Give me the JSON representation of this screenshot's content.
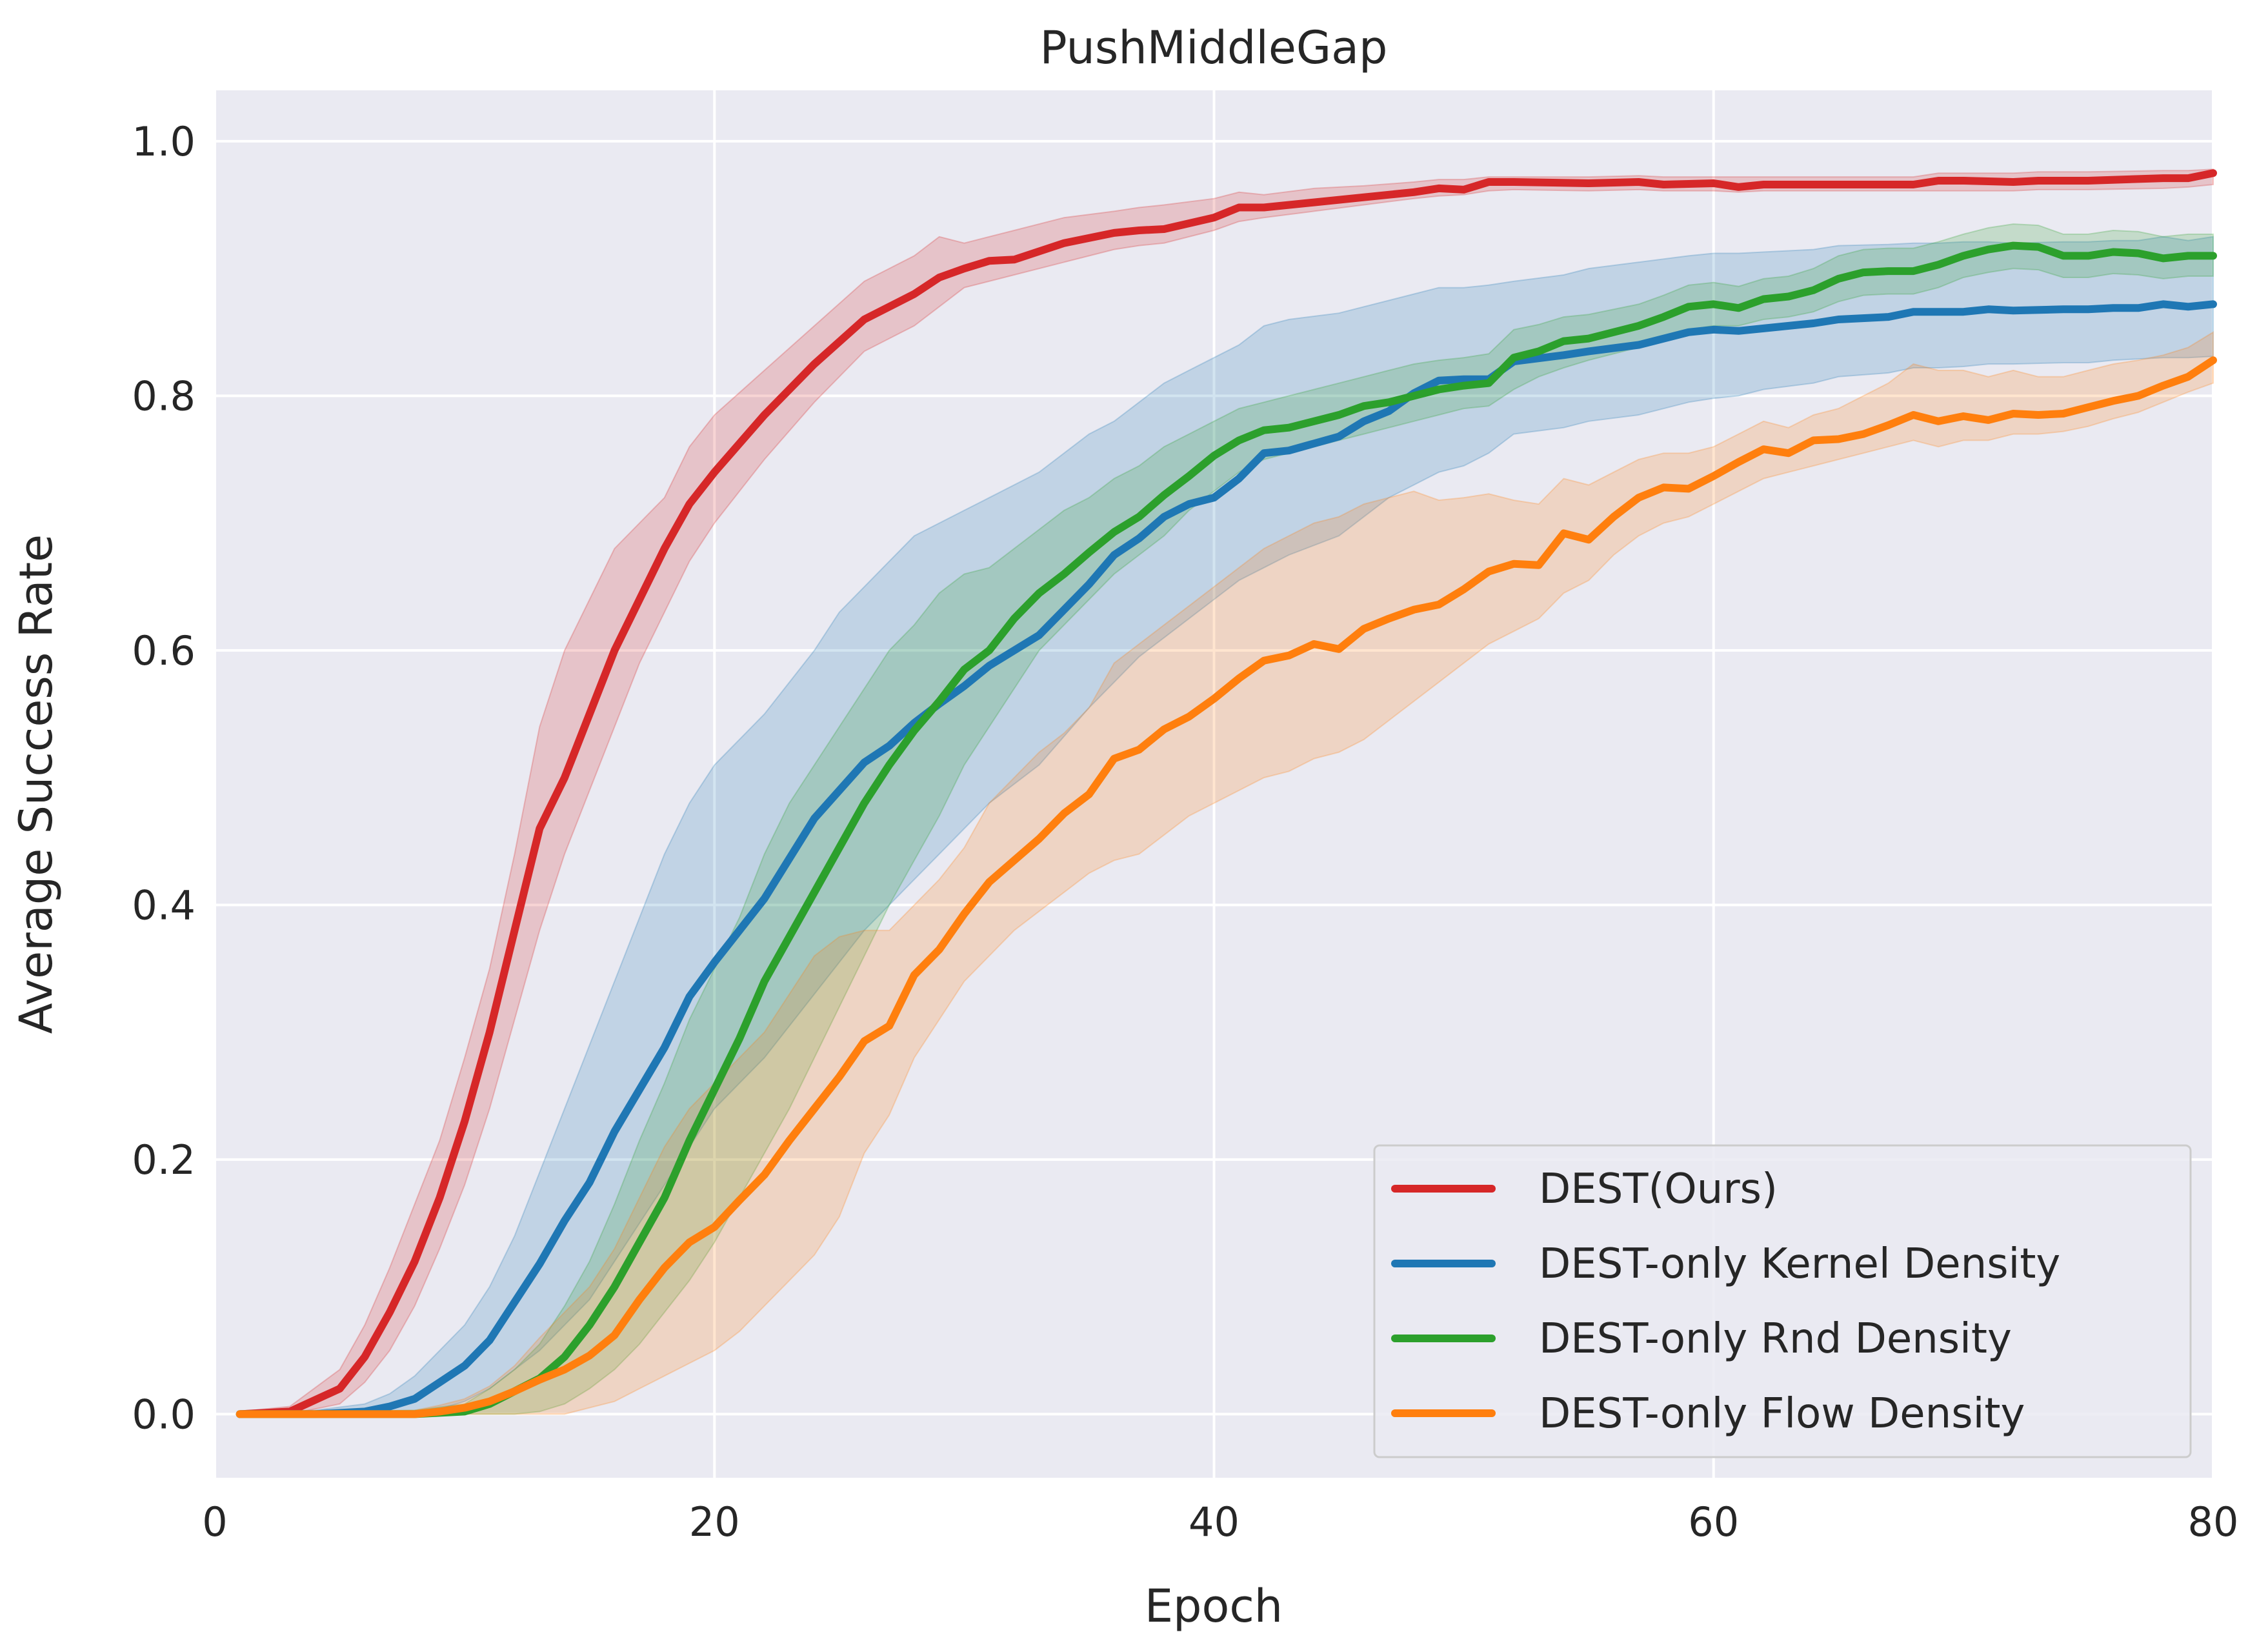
{
  "chart_data": {
    "type": "line",
    "title": "PushMiddleGap",
    "xlabel": "Epoch",
    "ylabel": "Average Success Rate",
    "xlim": [
      0,
      80
    ],
    "ylim": [
      -0.05,
      1.04
    ],
    "xticks": [
      0,
      20,
      40,
      60,
      80
    ],
    "yticks": [
      0.0,
      0.2,
      0.4,
      0.6,
      0.8,
      1.0
    ],
    "xtick_labels": [
      "0",
      "20",
      "40",
      "60",
      "80"
    ],
    "ytick_labels": [
      "0.0",
      "0.2",
      "0.4",
      "0.6",
      "0.8",
      "1.0"
    ],
    "grid": true,
    "legend_position": "lower-right",
    "background": "#eaeaf2",
    "series": [
      {
        "name": "DEST(Ours)",
        "color": "#d62728",
        "x": [
          1,
          3,
          5,
          6,
          7,
          8,
          9,
          10,
          11,
          12,
          13,
          14,
          15,
          16,
          17,
          18,
          19,
          20,
          22,
          24,
          26,
          28,
          29,
          30,
          31,
          32,
          34,
          36,
          37,
          38,
          40,
          41,
          42,
          44,
          46,
          48,
          49,
          50,
          51,
          52,
          55,
          57,
          58,
          60,
          61,
          62,
          65,
          68,
          69,
          70,
          72,
          73,
          75,
          78,
          79,
          80
        ],
        "y": [
          0.0,
          0.002,
          0.02,
          0.045,
          0.08,
          0.12,
          0.17,
          0.23,
          0.3,
          0.38,
          0.46,
          0.5,
          0.55,
          0.6,
          0.64,
          0.68,
          0.715,
          0.74,
          0.785,
          0.825,
          0.86,
          0.88,
          0.893,
          0.9,
          0.906,
          0.907,
          0.92,
          0.928,
          0.93,
          0.931,
          0.94,
          0.948,
          0.948,
          0.952,
          0.956,
          0.96,
          0.963,
          0.962,
          0.968,
          0.968,
          0.967,
          0.968,
          0.966,
          0.967,
          0.964,
          0.966,
          0.966,
          0.966,
          0.969,
          0.969,
          0.968,
          0.969,
          0.969,
          0.971,
          0.971,
          0.975
        ],
        "lower": [
          0.0,
          0.0,
          0.008,
          0.025,
          0.05,
          0.085,
          0.13,
          0.18,
          0.24,
          0.31,
          0.38,
          0.44,
          0.49,
          0.54,
          0.59,
          0.63,
          0.67,
          0.7,
          0.75,
          0.795,
          0.835,
          0.855,
          0.87,
          0.885,
          0.89,
          0.895,
          0.905,
          0.915,
          0.918,
          0.92,
          0.93,
          0.937,
          0.94,
          0.945,
          0.95,
          0.955,
          0.957,
          0.958,
          0.961,
          0.962,
          0.961,
          0.962,
          0.961,
          0.961,
          0.96,
          0.961,
          0.961,
          0.961,
          0.961,
          0.961,
          0.961,
          0.962,
          0.962,
          0.963,
          0.964,
          0.966
        ],
        "upper": [
          0.002,
          0.006,
          0.035,
          0.07,
          0.115,
          0.165,
          0.215,
          0.28,
          0.35,
          0.44,
          0.54,
          0.6,
          0.64,
          0.68,
          0.7,
          0.72,
          0.76,
          0.785,
          0.82,
          0.855,
          0.89,
          0.91,
          0.925,
          0.92,
          0.925,
          0.93,
          0.94,
          0.945,
          0.948,
          0.95,
          0.955,
          0.96,
          0.958,
          0.963,
          0.965,
          0.968,
          0.97,
          0.97,
          0.972,
          0.972,
          0.972,
          0.973,
          0.972,
          0.972,
          0.972,
          0.972,
          0.972,
          0.972,
          0.975,
          0.975,
          0.975,
          0.976,
          0.976,
          0.977,
          0.977,
          0.978
        ]
      },
      {
        "name": "DEST-only Kernel Density",
        "color": "#1f77b4",
        "x": [
          1,
          4,
          6,
          7,
          8,
          9,
          10,
          11,
          12,
          13,
          14,
          15,
          16,
          17,
          18,
          19,
          20,
          22,
          24,
          25,
          26,
          27,
          28,
          29,
          30,
          31,
          33,
          35,
          36,
          37,
          38,
          39,
          40,
          41,
          42,
          43,
          45,
          46,
          47,
          48,
          49,
          50,
          51,
          52,
          54,
          55,
          57,
          59,
          60,
          61,
          62,
          64,
          65,
          67,
          68,
          69,
          70,
          71,
          72,
          74,
          75,
          76,
          77,
          78,
          79,
          80
        ],
        "y": [
          0.0,
          0.0,
          0.002,
          0.006,
          0.012,
          0.025,
          0.038,
          0.058,
          0.088,
          0.118,
          0.152,
          0.182,
          0.222,
          0.255,
          0.288,
          0.328,
          0.355,
          0.405,
          0.468,
          0.49,
          0.512,
          0.525,
          0.543,
          0.558,
          0.572,
          0.588,
          0.612,
          0.652,
          0.675,
          0.688,
          0.705,
          0.715,
          0.72,
          0.735,
          0.755,
          0.757,
          0.768,
          0.78,
          0.788,
          0.802,
          0.812,
          0.813,
          0.813,
          0.827,
          0.832,
          0.835,
          0.84,
          0.85,
          0.852,
          0.851,
          0.853,
          0.857,
          0.86,
          0.862,
          0.866,
          0.866,
          0.866,
          0.868,
          0.867,
          0.868,
          0.868,
          0.869,
          0.869,
          0.872,
          0.87,
          0.872
        ],
        "lower": [
          0.0,
          0.0,
          0.0,
          0.0,
          0.0,
          0.004,
          0.01,
          0.02,
          0.035,
          0.05,
          0.07,
          0.09,
          0.12,
          0.15,
          0.18,
          0.21,
          0.24,
          0.28,
          0.33,
          0.355,
          0.38,
          0.4,
          0.42,
          0.44,
          0.46,
          0.48,
          0.51,
          0.555,
          0.575,
          0.595,
          0.61,
          0.625,
          0.64,
          0.655,
          0.665,
          0.675,
          0.69,
          0.705,
          0.72,
          0.73,
          0.74,
          0.745,
          0.755,
          0.77,
          0.775,
          0.78,
          0.785,
          0.795,
          0.798,
          0.8,
          0.805,
          0.81,
          0.815,
          0.818,
          0.822,
          0.822,
          0.823,
          0.825,
          0.825,
          0.826,
          0.826,
          0.828,
          0.829,
          0.83,
          0.83,
          0.831
        ],
        "upper": [
          0.001,
          0.003,
          0.008,
          0.016,
          0.03,
          0.05,
          0.07,
          0.1,
          0.14,
          0.19,
          0.24,
          0.29,
          0.34,
          0.39,
          0.44,
          0.48,
          0.51,
          0.55,
          0.6,
          0.63,
          0.65,
          0.67,
          0.69,
          0.7,
          0.71,
          0.72,
          0.74,
          0.77,
          0.78,
          0.795,
          0.81,
          0.82,
          0.83,
          0.84,
          0.855,
          0.86,
          0.865,
          0.87,
          0.875,
          0.88,
          0.885,
          0.885,
          0.887,
          0.89,
          0.895,
          0.9,
          0.905,
          0.91,
          0.912,
          0.912,
          0.913,
          0.915,
          0.918,
          0.919,
          0.92,
          0.92,
          0.921,
          0.921,
          0.92,
          0.921,
          0.921,
          0.922,
          0.922,
          0.925,
          0.922,
          0.925
        ]
      },
      {
        "name": "DEST-only Rnd Density",
        "color": "#2ca02c",
        "x": [
          1,
          8,
          10,
          11,
          12,
          13,
          14,
          15,
          16,
          17,
          18,
          19,
          20,
          21,
          22,
          23,
          24,
          25,
          26,
          27,
          28,
          29,
          30,
          31,
          32,
          33,
          34,
          35,
          36,
          37,
          38,
          39,
          40,
          41,
          42,
          43,
          44,
          45,
          46,
          47,
          48,
          49,
          50,
          51,
          52,
          53,
          54,
          55,
          57,
          58,
          59,
          60,
          61,
          62,
          63,
          64,
          65,
          66,
          67,
          68,
          69,
          70,
          71,
          72,
          73,
          74,
          75,
          76,
          77,
          78,
          79,
          80
        ],
        "y": [
          0.0,
          0.0,
          0.002,
          0.008,
          0.018,
          0.028,
          0.045,
          0.07,
          0.1,
          0.135,
          0.17,
          0.215,
          0.255,
          0.295,
          0.34,
          0.375,
          0.41,
          0.445,
          0.48,
          0.51,
          0.537,
          0.56,
          0.585,
          0.6,
          0.625,
          0.645,
          0.66,
          0.677,
          0.693,
          0.705,
          0.722,
          0.737,
          0.753,
          0.765,
          0.773,
          0.775,
          0.78,
          0.785,
          0.792,
          0.795,
          0.8,
          0.805,
          0.808,
          0.81,
          0.83,
          0.835,
          0.843,
          0.845,
          0.855,
          0.862,
          0.87,
          0.872,
          0.869,
          0.876,
          0.878,
          0.883,
          0.892,
          0.897,
          0.898,
          0.898,
          0.903,
          0.91,
          0.915,
          0.918,
          0.917,
          0.91,
          0.91,
          0.913,
          0.912,
          0.908,
          0.91,
          0.91
        ],
        "lower": [
          0.0,
          0.0,
          0.0,
          0.0,
          0.0,
          0.002,
          0.008,
          0.02,
          0.035,
          0.055,
          0.08,
          0.105,
          0.135,
          0.17,
          0.205,
          0.24,
          0.28,
          0.32,
          0.36,
          0.4,
          0.435,
          0.47,
          0.51,
          0.54,
          0.57,
          0.6,
          0.62,
          0.64,
          0.66,
          0.675,
          0.69,
          0.71,
          0.725,
          0.74,
          0.75,
          0.755,
          0.76,
          0.765,
          0.77,
          0.775,
          0.78,
          0.785,
          0.79,
          0.792,
          0.805,
          0.815,
          0.822,
          0.828,
          0.838,
          0.845,
          0.852,
          0.855,
          0.855,
          0.86,
          0.862,
          0.866,
          0.874,
          0.879,
          0.88,
          0.88,
          0.885,
          0.893,
          0.897,
          0.9,
          0.899,
          0.893,
          0.893,
          0.896,
          0.895,
          0.892,
          0.894,
          0.894
        ],
        "upper": [
          0.001,
          0.003,
          0.008,
          0.02,
          0.035,
          0.055,
          0.085,
          0.12,
          0.165,
          0.215,
          0.26,
          0.31,
          0.35,
          0.39,
          0.44,
          0.48,
          0.51,
          0.54,
          0.57,
          0.6,
          0.62,
          0.645,
          0.66,
          0.665,
          0.68,
          0.695,
          0.71,
          0.72,
          0.735,
          0.745,
          0.76,
          0.77,
          0.78,
          0.79,
          0.795,
          0.8,
          0.805,
          0.81,
          0.815,
          0.82,
          0.825,
          0.828,
          0.83,
          0.833,
          0.852,
          0.856,
          0.862,
          0.864,
          0.872,
          0.879,
          0.887,
          0.889,
          0.886,
          0.892,
          0.894,
          0.9,
          0.91,
          0.915,
          0.916,
          0.916,
          0.921,
          0.927,
          0.932,
          0.935,
          0.934,
          0.927,
          0.927,
          0.93,
          0.929,
          0.925,
          0.927,
          0.927
        ]
      },
      {
        "name": "DEST-only Flow Density",
        "color": "#ff7f0e",
        "x": [
          1,
          8,
          9,
          10,
          11,
          12,
          13,
          14,
          15,
          16,
          17,
          18,
          19,
          20,
          21,
          22,
          23,
          24,
          25,
          26,
          27,
          28,
          29,
          30,
          31,
          32,
          33,
          34,
          35,
          36,
          37,
          38,
          39,
          40,
          41,
          42,
          43,
          44,
          45,
          46,
          47,
          48,
          49,
          50,
          51,
          52,
          53,
          54,
          55,
          56,
          57,
          58,
          59,
          60,
          61,
          62,
          63,
          64,
          65,
          66,
          67,
          68,
          69,
          70,
          71,
          72,
          73,
          74,
          75,
          76,
          77,
          78,
          79,
          80
        ],
        "y": [
          0.0,
          0.0,
          0.002,
          0.005,
          0.01,
          0.018,
          0.027,
          0.035,
          0.046,
          0.062,
          0.09,
          0.115,
          0.135,
          0.147,
          0.168,
          0.188,
          0.215,
          0.24,
          0.265,
          0.293,
          0.305,
          0.345,
          0.365,
          0.393,
          0.418,
          0.435,
          0.452,
          0.472,
          0.487,
          0.515,
          0.522,
          0.538,
          0.548,
          0.562,
          0.578,
          0.592,
          0.596,
          0.605,
          0.601,
          0.617,
          0.625,
          0.632,
          0.636,
          0.648,
          0.662,
          0.668,
          0.667,
          0.692,
          0.687,
          0.705,
          0.72,
          0.728,
          0.727,
          0.737,
          0.748,
          0.758,
          0.755,
          0.765,
          0.766,
          0.77,
          0.777,
          0.785,
          0.78,
          0.784,
          0.781,
          0.786,
          0.785,
          0.786,
          0.791,
          0.796,
          0.8,
          0.808,
          0.815,
          0.828
        ],
        "lower": [
          0.0,
          0.0,
          0.0,
          0.0,
          0.0,
          0.0,
          0.0,
          0.0,
          0.005,
          0.01,
          0.02,
          0.03,
          0.04,
          0.05,
          0.065,
          0.085,
          0.105,
          0.125,
          0.155,
          0.205,
          0.235,
          0.28,
          0.31,
          0.34,
          0.36,
          0.38,
          0.395,
          0.41,
          0.425,
          0.435,
          0.44,
          0.455,
          0.47,
          0.48,
          0.49,
          0.5,
          0.505,
          0.515,
          0.52,
          0.53,
          0.545,
          0.56,
          0.575,
          0.59,
          0.605,
          0.615,
          0.625,
          0.645,
          0.655,
          0.675,
          0.69,
          0.7,
          0.705,
          0.715,
          0.725,
          0.735,
          0.74,
          0.745,
          0.75,
          0.755,
          0.76,
          0.765,
          0.76,
          0.765,
          0.765,
          0.77,
          0.77,
          0.772,
          0.776,
          0.782,
          0.787,
          0.795,
          0.803,
          0.81
        ],
        "upper": [
          0.001,
          0.003,
          0.007,
          0.012,
          0.022,
          0.038,
          0.06,
          0.08,
          0.1,
          0.13,
          0.17,
          0.21,
          0.24,
          0.26,
          0.28,
          0.3,
          0.33,
          0.36,
          0.375,
          0.38,
          0.38,
          0.4,
          0.42,
          0.445,
          0.48,
          0.5,
          0.52,
          0.535,
          0.555,
          0.59,
          0.605,
          0.62,
          0.635,
          0.65,
          0.665,
          0.68,
          0.69,
          0.7,
          0.705,
          0.715,
          0.72,
          0.725,
          0.718,
          0.72,
          0.723,
          0.718,
          0.715,
          0.735,
          0.73,
          0.74,
          0.75,
          0.755,
          0.755,
          0.76,
          0.77,
          0.78,
          0.775,
          0.785,
          0.79,
          0.8,
          0.81,
          0.825,
          0.82,
          0.82,
          0.815,
          0.82,
          0.815,
          0.815,
          0.82,
          0.825,
          0.828,
          0.832,
          0.838,
          0.85
        ]
      }
    ]
  }
}
